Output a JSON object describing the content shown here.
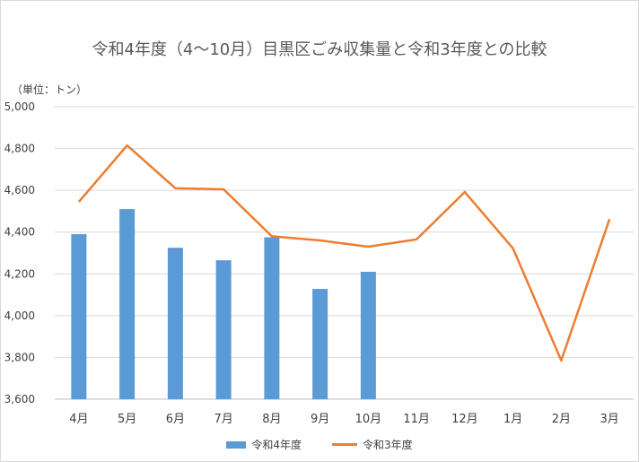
{
  "colors": {
    "bar": "#5b9bd5",
    "line": "#ed7d31",
    "grid": "#d9d9d9",
    "axis": "#bfbfbf",
    "text": "#404040"
  },
  "chart_data": {
    "type": "bar",
    "title": "令和4年度（4～10月）目黒区ごみ収集量と令和3年度との比較",
    "unit_label": "（単位：トン）",
    "categories": [
      "4月",
      "5月",
      "6月",
      "7月",
      "8月",
      "9月",
      "10月",
      "11月",
      "12月",
      "1月",
      "2月",
      "3月"
    ],
    "series": [
      {
        "name": "令和4年度",
        "type": "bar",
        "values": [
          4390,
          4510,
          4325,
          4265,
          4375,
          4128,
          4210,
          null,
          null,
          null,
          null,
          null
        ]
      },
      {
        "name": "令和3年度",
        "type": "line",
        "values": [
          4545,
          4815,
          4610,
          4605,
          4380,
          4360,
          4330,
          4365,
          4592,
          4322,
          3785,
          4462
        ]
      }
    ],
    "ylim": [
      3600,
      5000
    ],
    "yticks": [
      3600,
      3800,
      4000,
      4200,
      4400,
      4600,
      4800,
      5000
    ],
    "ytick_labels": [
      "3,600",
      "3,800",
      "4,000",
      "4,200",
      "4,400",
      "4,600",
      "4,800",
      "5,000"
    ],
    "grid": true,
    "legend_position": "bottom"
  }
}
